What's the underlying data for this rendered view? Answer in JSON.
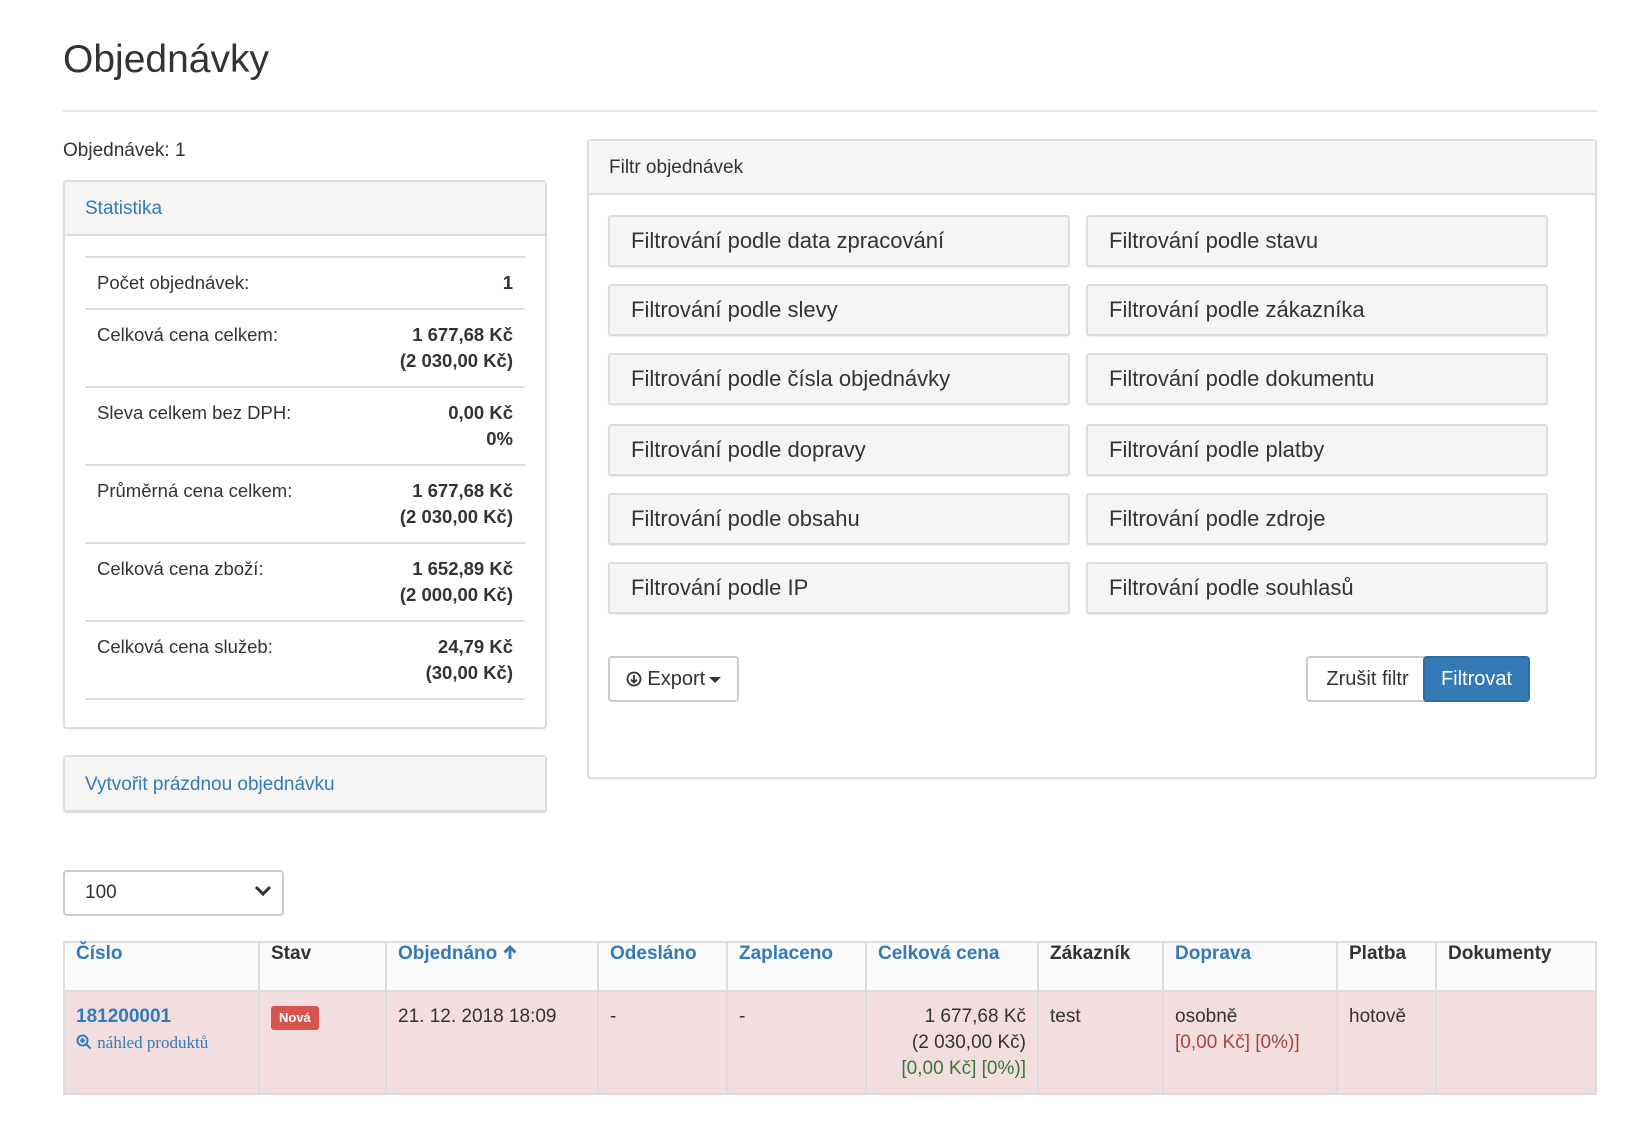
{
  "page": {
    "title": "Objednávky",
    "count_text": "Objednávek: 1"
  },
  "stats": {
    "heading": "Statistika",
    "rows": [
      {
        "label": "Počet objednávek:",
        "value": "1",
        "value2": ""
      },
      {
        "label": "Celková cena celkem:",
        "value": "1 677,68 Kč",
        "value2": "(2 030,00 Kč)"
      },
      {
        "label": "Sleva celkem bez DPH:",
        "value": "0,00 Kč",
        "value2": "0%"
      },
      {
        "label": "Průměrná cena celkem:",
        "value": "1 677,68 Kč",
        "value2": "(2 030,00 Kč)"
      },
      {
        "label": "Celková cena zboží:",
        "value": "1 652,89 Kč",
        "value2": "(2 000,00 Kč)"
      },
      {
        "label": "Celková cena služeb:",
        "value": "24,79 Kč",
        "value2": "(30,00 Kč)"
      }
    ]
  },
  "create_empty": "Vytvořit prázdnou objednávku",
  "filter": {
    "heading": "Filtr objednávek",
    "buttons": [
      "Filtrování podle data zpracování",
      "Filtrování podle stavu",
      "Filtrování podle slevy",
      "Filtrování podle zákazníka",
      "Filtrování podle čísla objednávky",
      "Filtrování podle dokumentu",
      "Filtrování podle dopravy",
      "Filtrování podle platby",
      "Filtrování podle obsahu",
      "Filtrování podle zdroje",
      "Filtrování podle IP",
      "Filtrování podle souhlasů"
    ],
    "export_label": "Export",
    "cancel_label": "Zrušit filtr",
    "submit_label": "Filtrovat"
  },
  "page_size": {
    "selected": "100"
  },
  "table": {
    "headers": [
      "Číslo",
      "Stav",
      "Objednáno",
      "Odesláno",
      "Zaplaceno",
      "Celková cena",
      "Zákazník",
      "Doprava",
      "Platba",
      "Dokumenty"
    ],
    "rows": [
      {
        "number": "181200001",
        "preview": "náhled produktů",
        "status": "Nová",
        "ordered": "21. 12. 2018 18:09",
        "sent": "-",
        "paid": "-",
        "price": "1 677,68 Kč",
        "price_vat": "(2 030,00 Kč)",
        "price_discount": "[0,00 Kč] [0%)]",
        "customer": "test",
        "shipping": "osobně",
        "shipping_price": "[0,00 Kč] [0%)]",
        "payment": "hotově",
        "documents": ""
      }
    ]
  },
  "colors": {
    "link": "#337ab7",
    "primary": "#337ab7",
    "danger": "#d9534f",
    "row_bg": "#f2dede",
    "green": "#3c763d",
    "red": "#a94442"
  },
  "icons": {
    "export": "arrow-circle-down-icon",
    "sort": "arrow-up-icon",
    "preview": "zoom-in-icon",
    "select": "chevron-down-icon"
  }
}
